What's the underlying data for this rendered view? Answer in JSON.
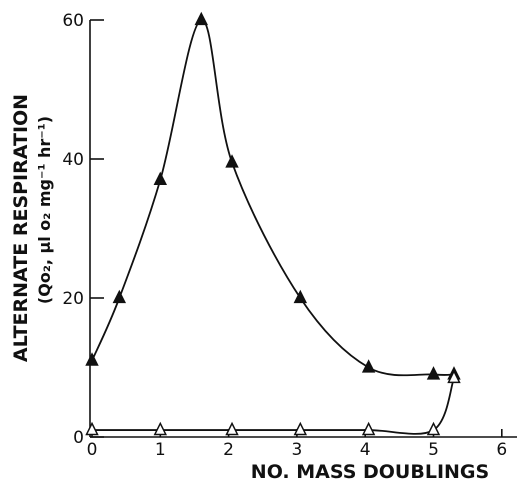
{
  "chart_data": {
    "type": "line",
    "xlabel": "NO. MASS DOUBLINGS",
    "ylabel": "ALTERNATE RESPIRATION",
    "ylabel_sub": "(Qo₂, µl o₂ mg⁻¹ hr⁻¹)",
    "xlim": [
      0,
      6
    ],
    "ylim": [
      0,
      60
    ],
    "x_ticks": [
      0,
      1,
      2,
      3,
      4,
      5,
      6
    ],
    "x_tick_labels": [
      "0",
      "1",
      "2",
      "3",
      "4",
      "5",
      "6"
    ],
    "y_ticks": [
      0,
      20,
      40,
      60
    ],
    "y_tick_labels": [
      "0",
      "20",
      "40",
      "60"
    ],
    "grid": false,
    "legend": "none",
    "series": [
      {
        "marker": "filled-triangle",
        "x": [
          0,
          0.4,
          1.0,
          1.6,
          2.05,
          3.05,
          4.05,
          5.0,
          5.3
        ],
        "y": [
          11,
          20,
          37,
          60,
          39.5,
          20,
          10,
          9,
          9
        ]
      },
      {
        "marker": "open-triangle",
        "x": [
          0,
          1.0,
          2.05,
          3.05,
          4.05,
          5.0,
          5.3
        ],
        "y": [
          1,
          1,
          1,
          1,
          1,
          1,
          8.5
        ]
      }
    ]
  }
}
